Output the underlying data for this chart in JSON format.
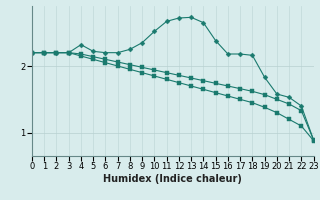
{
  "x": [
    0,
    1,
    2,
    3,
    4,
    5,
    6,
    7,
    8,
    9,
    10,
    11,
    12,
    13,
    14,
    15,
    16,
    17,
    18,
    19,
    20,
    21,
    22,
    23
  ],
  "line_straight1": [
    2.2,
    2.2,
    2.2,
    2.2,
    2.15,
    2.1,
    2.05,
    2.0,
    1.95,
    1.9,
    1.85,
    1.8,
    1.75,
    1.7,
    1.65,
    1.6,
    1.55,
    1.5,
    1.45,
    1.38,
    1.3,
    1.2,
    1.1,
    0.88
  ],
  "line_straight2": [
    2.2,
    2.2,
    2.2,
    2.2,
    2.18,
    2.14,
    2.1,
    2.06,
    2.02,
    1.98,
    1.94,
    1.9,
    1.86,
    1.82,
    1.78,
    1.74,
    1.7,
    1.66,
    1.62,
    1.57,
    1.5,
    1.43,
    1.33,
    0.89
  ],
  "line_peak": [
    2.2,
    2.2,
    2.2,
    2.2,
    2.32,
    2.22,
    2.2,
    2.2,
    2.25,
    2.35,
    2.52,
    2.67,
    2.72,
    2.73,
    2.65,
    2.38,
    2.18,
    2.18,
    2.16,
    1.83,
    1.58,
    1.53,
    1.4,
    0.89
  ],
  "bg_color": "#d8ecec",
  "line_color": "#1a7a6e",
  "grid_color_v": "#c0d8d8",
  "grid_color_h": "#b8d0d0",
  "xlabel": "Humidex (Indice chaleur)",
  "yticks": [
    1,
    2
  ],
  "xticks": [
    0,
    1,
    2,
    3,
    4,
    5,
    6,
    7,
    8,
    9,
    10,
    11,
    12,
    13,
    14,
    15,
    16,
    17,
    18,
    19,
    20,
    21,
    22,
    23
  ],
  "ylim": [
    0.65,
    2.9
  ],
  "xlim": [
    0,
    23
  ],
  "xlabel_fontsize": 7,
  "tick_fontsize": 6,
  "marker_size": 2.5,
  "lw": 0.8
}
